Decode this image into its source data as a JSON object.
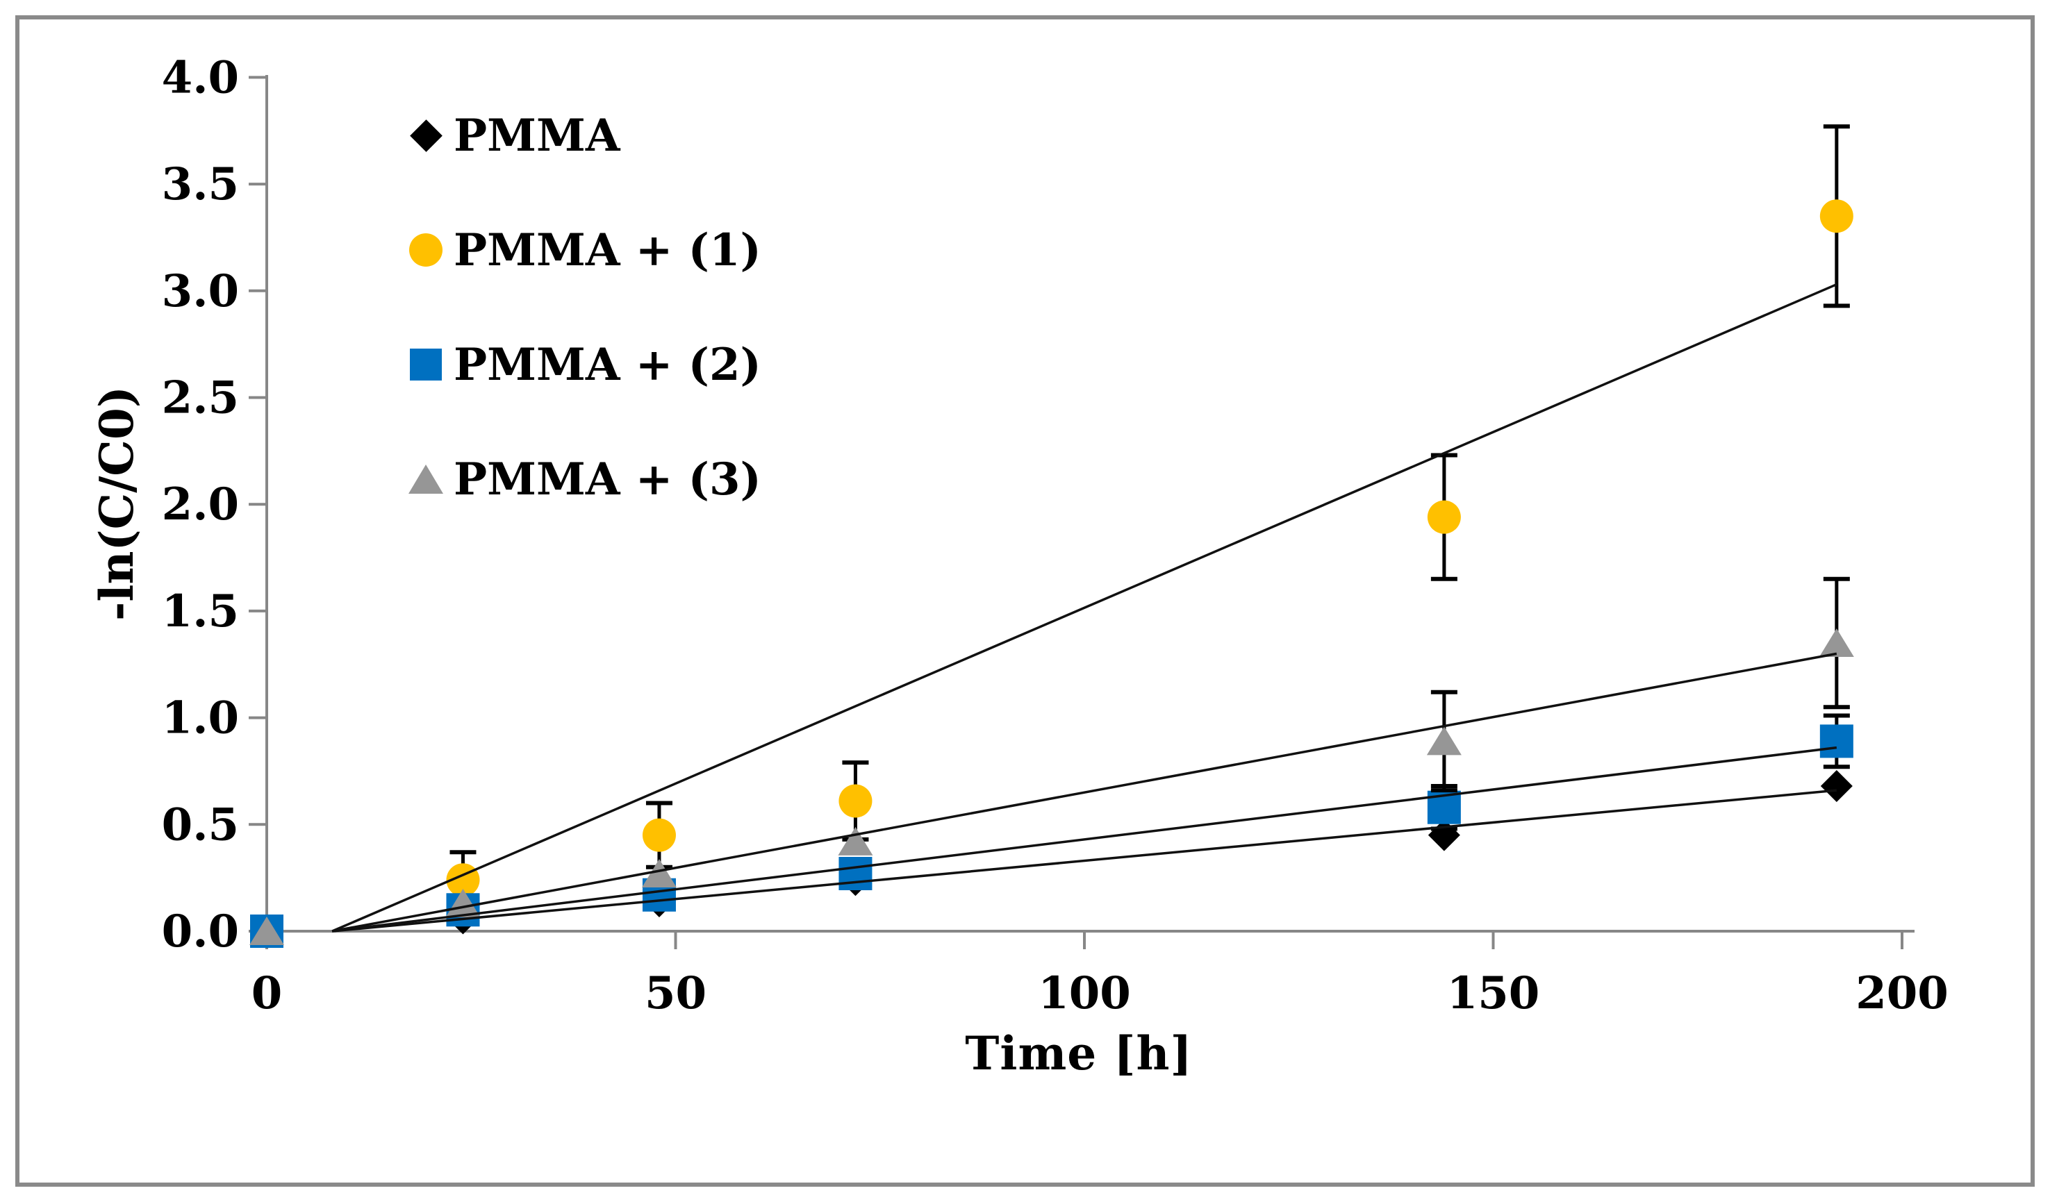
{
  "figure": {
    "background": "#FFFFFF",
    "border_color": "#8A8A8A",
    "axis_color": "#878787",
    "trendline_color": "#111111",
    "text_color": "#000000"
  },
  "chart_data": {
    "type": "scatter",
    "title": "",
    "xlabel": "Time [h]",
    "ylabel": "-ln(C/C0)",
    "xlim": [
      0,
      200
    ],
    "ylim": [
      0.0,
      4.0
    ],
    "xticks": [
      "0",
      "50",
      "100",
      "150",
      "200"
    ],
    "yticks": [
      "0.0",
      "0.5",
      "1.0",
      "1.5",
      "2.0",
      "2.5",
      "3.0",
      "3.5",
      "4.0"
    ],
    "grid": false,
    "legend_position": "upper-left-inside",
    "x": [
      0,
      24,
      48,
      72,
      144,
      192
    ],
    "series": [
      {
        "name": "PMMA",
        "marker": "diamond",
        "color": "#000000",
        "values": [
          0,
          0.06,
          0.14,
          0.24,
          0.45,
          0.68
        ],
        "errors": [
          0,
          0,
          0,
          0,
          0,
          0
        ],
        "trendline": {
          "x": [
            8,
            192
          ],
          "y": [
            0,
            0.66
          ]
        }
      },
      {
        "name": "PMMA + (1)",
        "marker": "circle",
        "color": "#FFC000",
        "values": [
          0,
          0.24,
          0.45,
          0.61,
          1.94,
          3.35
        ],
        "errors": [
          0,
          0.13,
          0.15,
          0.18,
          0.29,
          0.42
        ],
        "trendline": {
          "x": [
            8,
            192
          ],
          "y": [
            0,
            3.03
          ]
        }
      },
      {
        "name": "PMMA + (2)",
        "marker": "square",
        "color": "#0070C0",
        "values": [
          0,
          0.1,
          0.17,
          0.27,
          0.58,
          0.89
        ],
        "errors": [
          0,
          0,
          0,
          0,
          0.1,
          0.12
        ],
        "trendline": {
          "x": [
            8,
            192
          ],
          "y": [
            0,
            0.86
          ]
        }
      },
      {
        "name": "PMMA + (3)",
        "marker": "triangle",
        "color": "#969696",
        "values": [
          0,
          0.13,
          0.27,
          0.42,
          0.89,
          1.35
        ],
        "errors": [
          0,
          0,
          0,
          0,
          0.23,
          0.3
        ],
        "trendline": {
          "x": [
            8,
            192
          ],
          "y": [
            0,
            1.3
          ]
        }
      }
    ]
  }
}
